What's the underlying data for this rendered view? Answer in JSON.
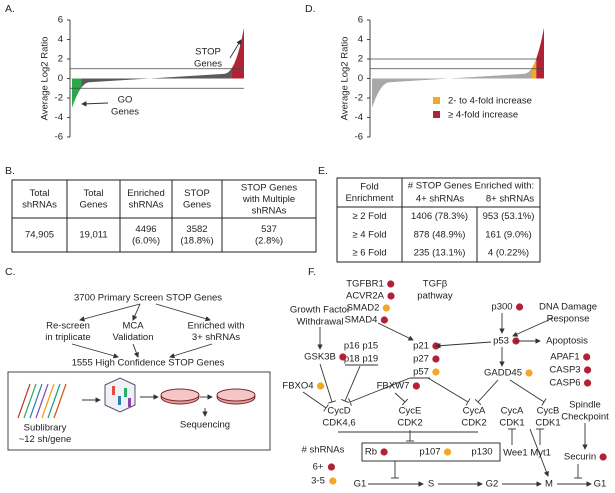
{
  "panel_a": {
    "letter": "A.",
    "ylabel": "Average Log2 Ratio",
    "ylim": [
      -6,
      6
    ],
    "yticks": [
      -6,
      -4,
      -2,
      0,
      2,
      4,
      6
    ],
    "thresholds": [
      1,
      -1
    ],
    "stop_label": [
      "STOP",
      "Genes"
    ],
    "go_label": [
      "GO",
      "Genes"
    ],
    "colors": {
      "low": "#2aa84a",
      "mid": "#5a5a5a",
      "high": "#b22234"
    }
  },
  "panel_d": {
    "letter": "D.",
    "ylabel": "Average Log2 Ratio",
    "ylim": [
      -6,
      6
    ],
    "yticks": [
      -6,
      -4,
      -2,
      0,
      2,
      4,
      6
    ],
    "thresholds": [
      1,
      2
    ],
    "base_color": "#a8a8a8",
    "legend": [
      {
        "label": "2- to 4-fold increase",
        "color": "#f5a623"
      },
      {
        "label": "≥ 4-fold increase",
        "color": "#b22234"
      }
    ]
  },
  "table_b": {
    "letter": "B.",
    "header": [
      [
        "Total",
        "shRNAs"
      ],
      [
        "Total",
        "Genes"
      ],
      [
        "Enriched",
        "shRNAs"
      ],
      [
        "STOP",
        "Genes"
      ],
      [
        "STOP Genes",
        "with Multiple",
        "shRNAs"
      ]
    ],
    "row": [
      [
        "74,905"
      ],
      [
        "19,011"
      ],
      [
        "4496",
        "(6.0%)"
      ],
      [
        "3582",
        "(18.8%)"
      ],
      [
        "537",
        "(2.8%)"
      ]
    ]
  },
  "table_e": {
    "letter": "E.",
    "first_header": [
      "Fold",
      "Enrichment"
    ],
    "group_header": "# STOP Genes Enriched with:",
    "columns": [
      "4+ shRNAs",
      "8+ shRNAs"
    ],
    "rows": [
      [
        "≥ 2 Fold",
        "1406 (78.3%)",
        "953 (53.1%)"
      ],
      [
        "≥ 4 Fold",
        "878 (48.9%)",
        "161 (9.0%)"
      ],
      [
        "≥ 6 Fold",
        "235 (13.1%)",
        "4 (0.22%)"
      ]
    ]
  },
  "flow_c": {
    "letter": "C.",
    "top": "3700 Primary Screen STOP Genes",
    "branches": [
      [
        "Re-screen",
        "in triplicate"
      ],
      [
        "MCA",
        "Validation"
      ],
      [
        "Enriched with",
        "3+ shRNAs"
      ]
    ],
    "merged": "1555 High Confidence STOP Genes",
    "sublibrary": [
      "Sublibrary",
      "~12 sh/gene"
    ],
    "sequencing": "Sequencing"
  },
  "pathway_f": {
    "letter": "F.",
    "nodes": [
      {
        "lines": [
          "TGFBR1"
        ],
        "color": "#b22234"
      },
      {
        "lines": [
          "ACVR2A"
        ],
        "color": "#b22234"
      },
      {
        "lines": [
          "SMAD2"
        ],
        "color": "#f5a623"
      },
      {
        "lines": [
          "SMAD4"
        ],
        "color": "#b22234"
      },
      {
        "lines": [
          "TGFβ",
          "pathway"
        ]
      },
      {
        "lines": [
          "Growth Factor",
          "Withdrawal"
        ]
      },
      {
        "lines": [
          "p300"
        ],
        "color": "#b22234"
      },
      {
        "lines": [
          "DNA Damage",
          "Response"
        ]
      },
      {
        "lines": [
          "p16  p15"
        ]
      },
      {
        "lines": [
          "p18  p19"
        ]
      },
      {
        "lines": [
          "p21"
        ],
        "color": "#b22234"
      },
      {
        "lines": [
          "p27"
        ],
        "color": "#b22234"
      },
      {
        "lines": [
          "p57"
        ],
        "color": "#f5a623"
      },
      {
        "lines": [
          "p53"
        ],
        "color": "#b22234"
      },
      {
        "lines": [
          "Apoptosis"
        ]
      },
      {
        "lines": [
          "APAF1"
        ],
        "color": "#b22234"
      },
      {
        "lines": [
          "CASP3"
        ],
        "color": "#b22234"
      },
      {
        "lines": [
          "CASP6"
        ],
        "color": "#b22234"
      },
      {
        "lines": [
          "GSK3B"
        ],
        "color": "#b22234"
      },
      {
        "lines": [
          "GADD45"
        ],
        "color": "#f5a623"
      },
      {
        "lines": [
          "FBXO4"
        ],
        "color": "#f5a623"
      },
      {
        "lines": [
          "FBXW7"
        ],
        "color": "#b22234"
      },
      {
        "lines": [
          "CycD",
          "CDK4,6"
        ]
      },
      {
        "lines": [
          "CycE",
          "CDK2"
        ]
      },
      {
        "lines": [
          "CycA",
          "CDK2"
        ]
      },
      {
        "lines": [
          "CycA",
          "CDK1"
        ]
      },
      {
        "lines": [
          "CycB",
          "CDK1"
        ]
      },
      {
        "lines": [
          "Spindle",
          "Checkpoint"
        ]
      },
      {
        "lines": [
          "Rb"
        ],
        "color": "#b22234"
      },
      {
        "lines": [
          "p107"
        ],
        "color": "#f5a623"
      },
      {
        "lines": [
          "p130"
        ]
      },
      {
        "lines": [
          "Wee1 Myt1"
        ]
      },
      {
        "lines": [
          "Securin"
        ],
        "color": "#b22234"
      }
    ],
    "legend_title": "# shRNAs",
    "legend": [
      {
        "label": "6+",
        "color": "#b22234"
      },
      {
        "label": "3-5",
        "color": "#f5a623"
      }
    ],
    "phases": [
      "G1",
      "S",
      "G2",
      "M",
      "G1"
    ]
  }
}
